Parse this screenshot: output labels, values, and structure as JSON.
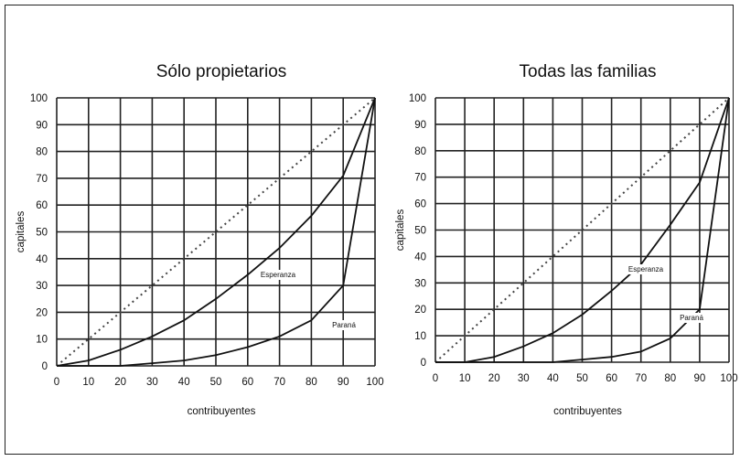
{
  "chart_data": [
    {
      "type": "line",
      "title": "Sólo propietarios",
      "xlabel": "contribuyentes",
      "ylabel": "capitales",
      "xlim": [
        0,
        100
      ],
      "ylim": [
        0,
        100
      ],
      "x_ticks": [
        "0",
        "10",
        "20",
        "30",
        "40",
        "50",
        "60",
        "70",
        "80",
        "90",
        "100"
      ],
      "y_ticks": [
        "0",
        "10",
        "20",
        "30",
        "40",
        "50",
        "60",
        "70",
        "80",
        "90",
        "100"
      ],
      "grid": true,
      "equality_line": {
        "x": [
          0,
          100
        ],
        "y": [
          0,
          100
        ]
      },
      "series": [
        {
          "name": "Esperanza",
          "x": [
            0,
            10,
            20,
            30,
            40,
            50,
            60,
            70,
            80,
            90,
            100
          ],
          "y": [
            0,
            2,
            6,
            11,
            17,
            25,
            34,
            44,
            56,
            71,
            100
          ]
        },
        {
          "name": "Paraná",
          "x": [
            0,
            10,
            20,
            30,
            40,
            50,
            60,
            70,
            80,
            90,
            100
          ],
          "y": [
            0,
            0,
            0,
            1,
            2,
            4,
            7,
            11,
            17,
            30,
            100
          ]
        }
      ]
    },
    {
      "type": "line",
      "title": "Todas las familias",
      "xlabel": "contribuyentes",
      "ylabel": "capitales",
      "xlim": [
        0,
        100
      ],
      "ylim": [
        0,
        100
      ],
      "x_ticks": [
        "0",
        "10",
        "20",
        "30",
        "40",
        "50",
        "60",
        "70",
        "80",
        "90",
        "100"
      ],
      "y_ticks": [
        "0",
        "10",
        "20",
        "30",
        "40",
        "50",
        "60",
        "70",
        "80",
        "90",
        "100"
      ],
      "grid": true,
      "equality_line": {
        "x": [
          0,
          100
        ],
        "y": [
          0,
          100
        ]
      },
      "series": [
        {
          "name": "Esperanza",
          "x": [
            0,
            10,
            20,
            30,
            40,
            50,
            60,
            70,
            80,
            90,
            100
          ],
          "y": [
            0,
            0,
            2,
            6,
            11,
            18,
            27,
            37,
            52,
            68,
            100
          ]
        },
        {
          "name": "Paraná",
          "x": [
            0,
            10,
            20,
            30,
            40,
            50,
            60,
            70,
            80,
            90,
            100
          ],
          "y": [
            0,
            0,
            0,
            0,
            0,
            1,
            2,
            4,
            9,
            20,
            100
          ]
        }
      ]
    }
  ]
}
